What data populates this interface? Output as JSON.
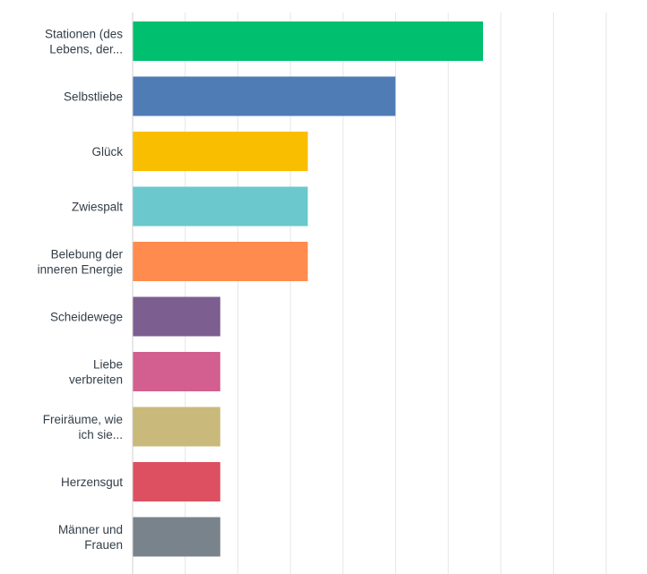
{
  "chart_data": {
    "type": "bar",
    "orientation": "horizontal",
    "title": "",
    "xlabel": "",
    "ylabel": "",
    "categories": [
      [
        "Stationen (des",
        "Lebens, der..."
      ],
      [
        "Selbstliebe"
      ],
      [
        "Glück"
      ],
      [
        "Zwiespalt"
      ],
      [
        "Belebung der",
        "inneren Energie"
      ],
      [
        "Scheidewege"
      ],
      [
        "Liebe",
        "verbreiten"
      ],
      [
        "Freiräume, wie",
        "ich sie..."
      ],
      [
        "Herzensgut"
      ],
      [
        "Männer und",
        "Frauen"
      ]
    ],
    "values": [
      20,
      15,
      10,
      10,
      10,
      5,
      5,
      5,
      5,
      5
    ],
    "xlim": [
      0,
      27
    ],
    "grid": true,
    "bar_colors": [
      "#00bf6f",
      "#507cb6",
      "#f9be00",
      "#6bc8cd",
      "#ff8b4f",
      "#7d5e90",
      "#d25f90",
      "#c9b97a",
      "#dd5062",
      "#79838b"
    ],
    "grid_color": "#e6e6e6",
    "axis_color": "#d0d0d0"
  }
}
